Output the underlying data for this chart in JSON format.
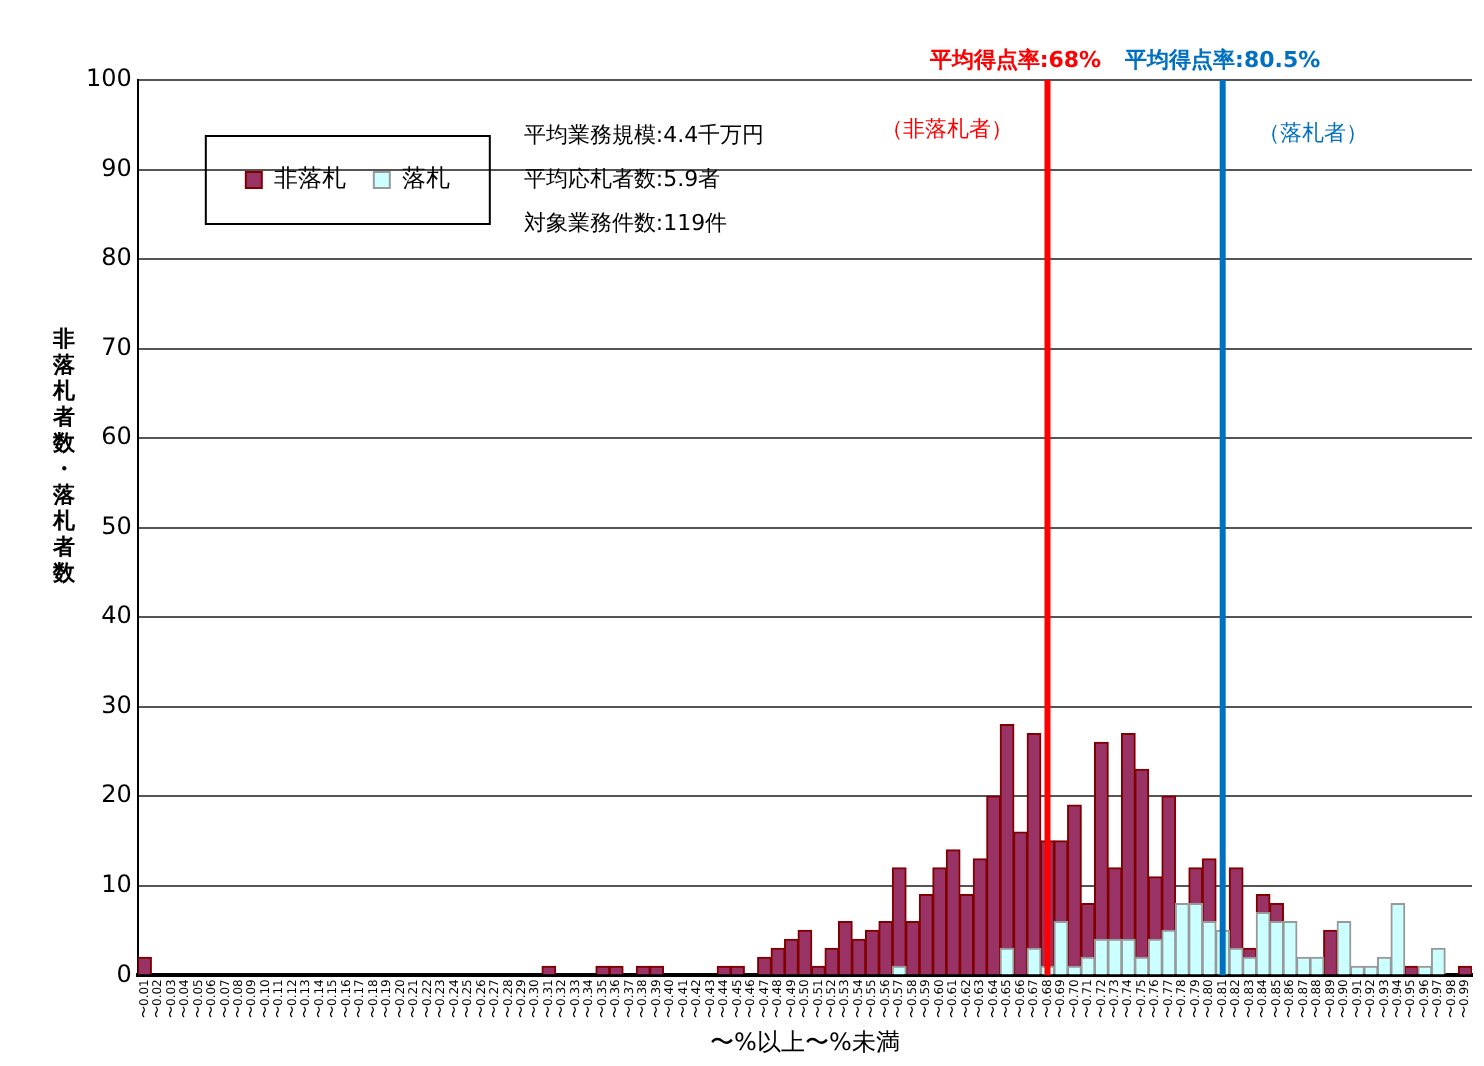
{
  "chart_data": {
    "type": "bar",
    "stacked": true,
    "xlabel": "〜%以上〜%未満",
    "ylabel": "非落札者数・落札者数",
    "categories": [
      "〜0.01",
      "〜0.02",
      "〜0.03",
      "〜0.04",
      "〜0.05",
      "〜0.06",
      "〜0.07",
      "〜0.08",
      "〜0.09",
      "〜0.10",
      "〜0.11",
      "〜0.12",
      "〜0.13",
      "〜0.14",
      "〜0.15",
      "〜0.16",
      "〜0.17",
      "〜0.18",
      "〜0.19",
      "〜0.20",
      "〜0.21",
      "〜0.22",
      "〜0.23",
      "〜0.24",
      "〜0.25",
      "〜0.26",
      "〜0.27",
      "〜0.28",
      "〜0.29",
      "〜0.30",
      "〜0.31",
      "〜0.32",
      "〜0.33",
      "〜0.34",
      "〜0.35",
      "〜0.36",
      "〜0.37",
      "〜0.38",
      "〜0.39",
      "〜0.40",
      "〜0.41",
      "〜0.42",
      "〜0.43",
      "〜0.44",
      "〜0.45",
      "〜0.46",
      "〜0.47",
      "〜0.48",
      "〜0.49",
      "〜0.50",
      "〜0.51",
      "〜0.52",
      "〜0.53",
      "〜0.54",
      "〜0.55",
      "〜0.56",
      "〜0.57",
      "〜0.58",
      "〜0.59",
      "〜0.60",
      "〜0.61",
      "〜0.62",
      "〜0.63",
      "〜0.64",
      "〜0.65",
      "〜0.66",
      "〜0.67",
      "〜0.68",
      "〜0.69",
      "〜0.70",
      "〜0.71",
      "〜0.72",
      "〜0.73",
      "〜0.74",
      "〜0.75",
      "〜0.76",
      "〜0.77",
      "〜0.78",
      "〜0.79",
      "〜0.80",
      "〜0.81",
      "〜0.82",
      "〜0.83",
      "〜0.84",
      "〜0.85",
      "〜0.86",
      "〜0.87",
      "〜0.88",
      "〜0.89",
      "〜0.90",
      "〜0.91",
      "〜0.92",
      "〜0.93",
      "〜0.94",
      "〜0.95",
      "〜0.96",
      "〜0.97",
      "〜0.98",
      "〜0.99"
    ],
    "series": [
      {
        "name": "落札",
        "color": "#ccffff",
        "values": [
          0,
          0,
          0,
          0,
          0,
          0,
          0,
          0,
          0,
          0,
          0,
          0,
          0,
          0,
          0,
          0,
          0,
          0,
          0,
          0,
          0,
          0,
          0,
          0,
          0,
          0,
          0,
          0,
          0,
          0,
          0,
          0,
          0,
          0,
          0,
          0,
          0,
          0,
          0,
          0,
          0,
          0,
          0,
          0,
          0,
          0,
          0,
          0,
          0,
          0,
          0,
          0,
          0,
          0,
          0,
          0,
          1,
          0,
          0,
          0,
          0,
          0,
          0,
          0,
          3,
          0,
          3,
          1,
          6,
          1,
          2,
          4,
          4,
          4,
          2,
          4,
          5,
          8,
          8,
          6,
          5,
          3,
          2,
          7,
          6,
          6,
          2,
          2,
          0,
          6,
          1,
          1,
          2,
          8,
          0,
          1,
          3,
          0,
          0
        ]
      },
      {
        "name": "非落札",
        "color": "#993366",
        "values": [
          2,
          0,
          0,
          0,
          0,
          0,
          0,
          0,
          0,
          0,
          0,
          0,
          0,
          0,
          0,
          0,
          0,
          0,
          0,
          0,
          0,
          0,
          0,
          0,
          0,
          0,
          0,
          0,
          0,
          0,
          1,
          0,
          0,
          0,
          1,
          1,
          0,
          1,
          1,
          0,
          0,
          0,
          0,
          1,
          1,
          0,
          2,
          3,
          4,
          5,
          1,
          3,
          6,
          4,
          5,
          6,
          11,
          6,
          9,
          12,
          14,
          9,
          13,
          20,
          25,
          16,
          24,
          14,
          9,
          18,
          6,
          22,
          8,
          23,
          21,
          7,
          15,
          0,
          4,
          7,
          0,
          9,
          1,
          2,
          2,
          0,
          0,
          0,
          5,
          0,
          0,
          0,
          0,
          0,
          1,
          0,
          0,
          0,
          1
        ]
      }
    ],
    "ylim": [
      0,
      100
    ],
    "yticks": [
      0,
      10,
      20,
      30,
      40,
      50,
      60,
      70,
      80,
      90,
      100
    ],
    "grid": "y",
    "legend": "top left",
    "ref_lines": [
      {
        "axis": "x",
        "value": "〜0.68",
        "label": "平均得点率:68%",
        "color": "#ff0000"
      },
      {
        "axis": "x",
        "value": "〜0.81",
        "label": "平均得点率:80.5%",
        "color": "#0070c0"
      }
    ],
    "annotations": [
      "平均業務規模:4.4千万円",
      "平均応札者数:5.9者",
      "対象業務件数:119件",
      "（非落札者）",
      "（落札者）"
    ]
  }
}
